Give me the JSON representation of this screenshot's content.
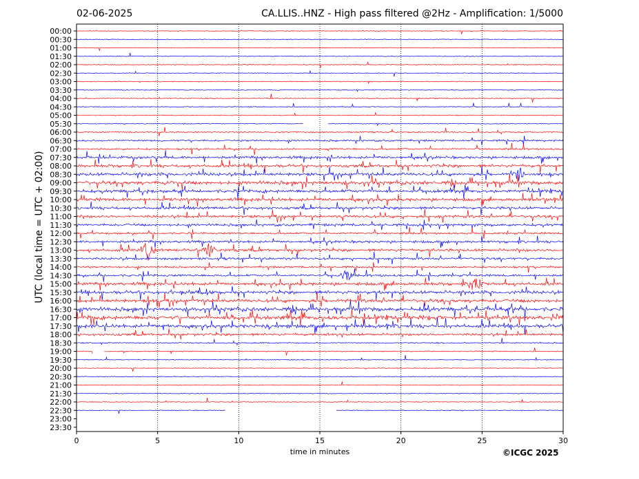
{
  "date": "02-06-2025",
  "title": "CA.LLIS..HNZ - High pass filtered @2Hz - Amplification: 1/5000",
  "copyright": "©ICGC 2025",
  "colors": {
    "red": "#ff0000",
    "blue": "#0000ff",
    "grid": "#000000"
  },
  "chart_data": {
    "type": "line",
    "xlabel": "time in minutes",
    "ylabel": "UTC (local time = UTC + 02:00)",
    "xlim": [
      0,
      30
    ],
    "x_ticks": [
      "0",
      "5",
      "10",
      "15",
      "20",
      "25",
      "30"
    ],
    "x_tick_values": [
      0,
      5,
      10,
      15,
      20,
      25,
      30
    ],
    "vertical_grid": [
      5,
      10,
      15,
      20,
      25
    ],
    "rows": [
      "00:00",
      "00:30",
      "01:00",
      "01:30",
      "02:00",
      "02:30",
      "03:00",
      "03:30",
      "04:00",
      "04:30",
      "05:00",
      "05:30",
      "06:00",
      "06:30",
      "07:00",
      "07:30",
      "08:00",
      "08:30",
      "09:00",
      "09:30",
      "10:00",
      "10:30",
      "11:00",
      "11:30",
      "12:00",
      "12:30",
      "13:00",
      "13:30",
      "14:00",
      "14:30",
      "15:00",
      "15:30",
      "16:00",
      "16:30",
      "17:00",
      "17:30",
      "18:00",
      "18:30",
      "19:00",
      "19:30",
      "20:00",
      "20:30",
      "21:00",
      "21:30",
      "22:00",
      "22:30",
      "23:00",
      "23:30"
    ],
    "row_colors": [
      "red",
      "blue"
    ],
    "activity_levels": [
      0.02,
      0.02,
      0.02,
      0.02,
      0.05,
      0.03,
      0.05,
      0.06,
      0.08,
      0.08,
      0.05,
      0.04,
      0.15,
      0.3,
      0.25,
      0.45,
      0.55,
      0.6,
      0.7,
      0.6,
      0.6,
      0.5,
      0.5,
      0.45,
      0.3,
      0.4,
      0.5,
      0.4,
      0.3,
      0.35,
      0.55,
      0.6,
      0.65,
      0.75,
      0.8,
      0.7,
      0.45,
      0.15,
      0.1,
      0.05,
      0.02,
      0.02,
      0.02,
      0.02,
      0.02,
      0.02,
      0.0,
      0.0
    ],
    "events": [
      {
        "row": "13:00",
        "minute": 4.4,
        "amplitude": 1.0
      },
      {
        "row": "13:00",
        "minute": 8.2,
        "amplitude": 0.6
      },
      {
        "row": "14:30",
        "minute": 16.6,
        "amplitude": 0.6
      },
      {
        "row": "15:00",
        "minute": 24.6,
        "amplitude": 0.7
      },
      {
        "row": "08:30",
        "minute": 27.2,
        "amplitude": 0.5
      }
    ],
    "gaps": [
      {
        "row": "05:30",
        "from": 14.0,
        "to": 15.5
      },
      {
        "row": "19:00",
        "from": 1.0,
        "to": 1.7
      },
      {
        "row": "22:30",
        "from": 9.2,
        "to": 16.0
      },
      {
        "row": "23:00",
        "from": 0,
        "to": 30
      },
      {
        "row": "23:30",
        "from": 0,
        "to": 30
      }
    ]
  }
}
